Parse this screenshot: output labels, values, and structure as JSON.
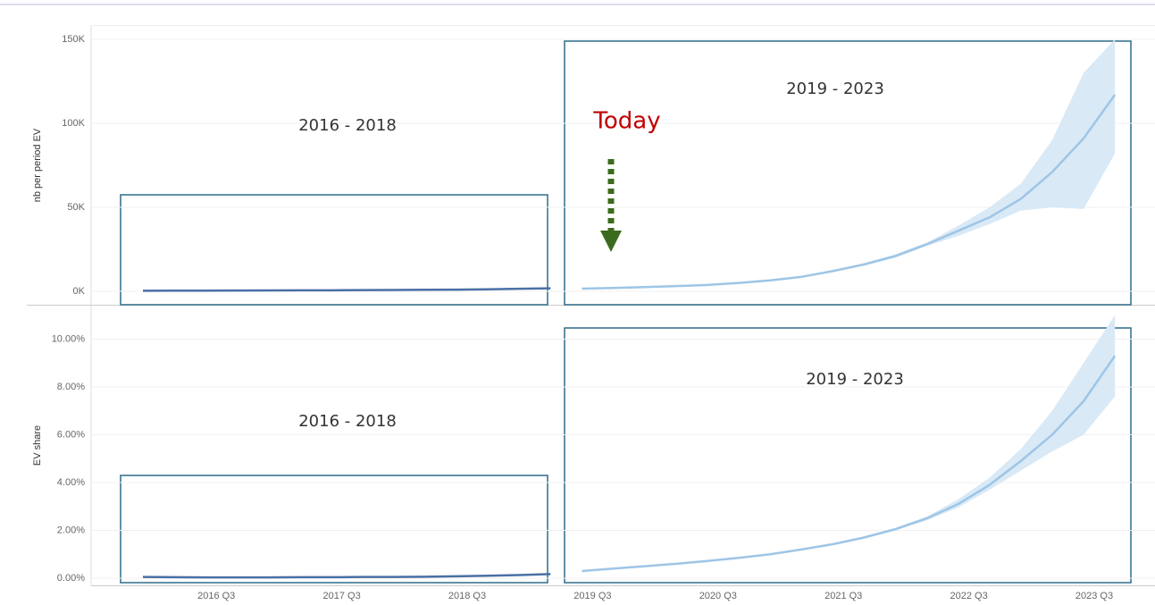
{
  "chart_data": {
    "type": "line",
    "categories": [
      null,
      null,
      "2016 Q3",
      null,
      null,
      null,
      "2017 Q3",
      null,
      null,
      null,
      "2018 Q3",
      null,
      null,
      null,
      "2019 Q3",
      null,
      null,
      null,
      "2020 Q3",
      null,
      null,
      null,
      "2021 Q3",
      null,
      null,
      null,
      "2022 Q3",
      null,
      null,
      null,
      "2023 Q3",
      null
    ],
    "panels": [
      {
        "ylabel": "nb per period EV",
        "ylim": [
          -8000,
          158000
        ],
        "yticks": [
          {
            "value": 0,
            "label": "0K"
          },
          {
            "value": 50000,
            "label": "50K"
          },
          {
            "value": 100000,
            "label": "100K"
          },
          {
            "value": 150000,
            "label": "150K"
          }
        ],
        "grid": true,
        "annotations": [
          "2016 - 2018",
          "2019 - 2023",
          "Today"
        ],
        "series": [
          {
            "color": "#4a6fa5",
            "values": [
              300,
              350,
              400,
              450,
              500,
              550,
              600,
              700,
              800,
              900,
              1000,
              1200,
              1500,
              1800,
              null,
              null,
              null,
              null,
              null,
              null,
              null,
              null,
              null,
              null,
              null,
              null,
              null,
              null,
              null,
              null,
              null,
              null
            ]
          },
          {
            "color": "#9ec5e6",
            "band_color": "#d9e9f6",
            "values": [
              null,
              null,
              null,
              null,
              null,
              null,
              null,
              null,
              null,
              null,
              null,
              null,
              null,
              null,
              1600,
              2000,
              2500,
              3100,
              3800,
              5000,
              6500,
              8600,
              12000,
              16000,
              21000,
              28000,
              36000,
              44000,
              55000,
              71000,
              91000,
              117000
            ],
            "lower": [
              null,
              null,
              null,
              null,
              null,
              null,
              null,
              null,
              null,
              null,
              null,
              null,
              null,
              null,
              1500,
              1900,
              2400,
              3000,
              3700,
              4800,
              6200,
              8200,
              11500,
              15300,
              20000,
              27000,
              33000,
              40000,
              48000,
              50000,
              49000,
              82000
            ],
            "upper": [
              null,
              null,
              null,
              null,
              null,
              null,
              null,
              null,
              null,
              null,
              null,
              null,
              null,
              null,
              1700,
              2100,
              2600,
              3200,
              3900,
              5200,
              6800,
              9000,
              12500,
              16700,
              22000,
              29000,
              39000,
              50000,
              64000,
              90000,
              130000,
              150000
            ]
          }
        ]
      },
      {
        "ylabel": "EV share",
        "ylim": [
          -0.3,
          11.4
        ],
        "yticks": [
          {
            "value": 0,
            "label": "0.00%"
          },
          {
            "value": 2,
            "label": "2.00%"
          },
          {
            "value": 4,
            "label": "4.00%"
          },
          {
            "value": 6,
            "label": "6.00%"
          },
          {
            "value": 8,
            "label": "8.00%"
          },
          {
            "value": 10,
            "label": "10.00%"
          }
        ],
        "grid": true,
        "annotations": [
          "2016 - 2018",
          "2019 - 2023"
        ],
        "series": [
          {
            "color": "#4a6fa5",
            "values": [
              0.05,
              0.04,
              0.03,
              0.03,
              0.03,
              0.04,
              0.04,
              0.05,
              0.05,
              0.06,
              0.08,
              0.1,
              0.13,
              0.17,
              null,
              null,
              null,
              null,
              null,
              null,
              null,
              null,
              null,
              null,
              null,
              null,
              null,
              null,
              null,
              null,
              null,
              null
            ]
          },
          {
            "color": "#9ec5e6",
            "band_color": "#d9e9f6",
            "values": [
              null,
              null,
              null,
              null,
              null,
              null,
              null,
              null,
              null,
              null,
              null,
              null,
              null,
              null,
              0.3,
              0.4,
              0.5,
              0.6,
              0.72,
              0.85,
              1.0,
              1.2,
              1.42,
              1.7,
              2.05,
              2.5,
              3.1,
              3.9,
              4.9,
              6.0,
              7.4,
              9.3
            ],
            "lower": [
              null,
              null,
              null,
              null,
              null,
              null,
              null,
              null,
              null,
              null,
              null,
              null,
              null,
              null,
              0.28,
              0.38,
              0.48,
              0.58,
              0.7,
              0.83,
              0.97,
              1.17,
              1.38,
              1.65,
              2.0,
              2.42,
              2.95,
              3.7,
              4.5,
              5.3,
              6.0,
              7.6
            ],
            "upper": [
              null,
              null,
              null,
              null,
              null,
              null,
              null,
              null,
              null,
              null,
              null,
              null,
              null,
              null,
              0.32,
              0.42,
              0.52,
              0.62,
              0.74,
              0.87,
              1.03,
              1.23,
              1.46,
              1.75,
              2.1,
              2.58,
              3.3,
              4.2,
              5.4,
              7.0,
              9.0,
              11.0
            ]
          }
        ]
      }
    ]
  }
}
